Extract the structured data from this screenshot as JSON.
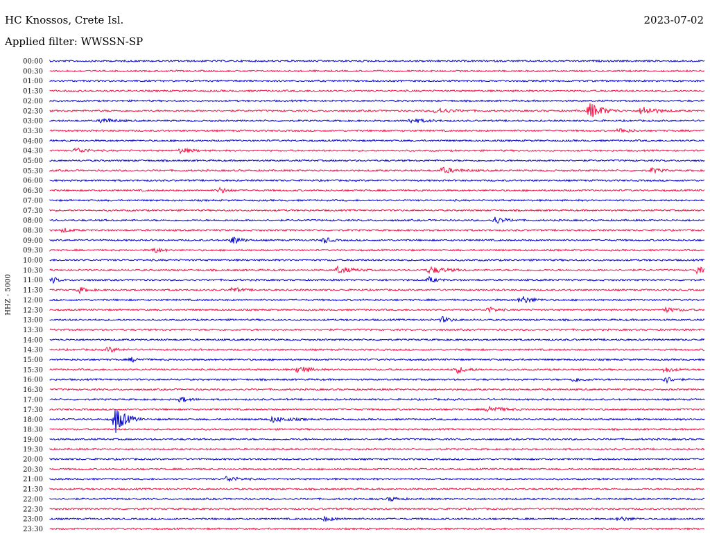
{
  "header": {
    "station": "HC Knossos, Crete Isl.",
    "date": "2023-07-02",
    "filter": "Applied filter: WWSSN-SP"
  },
  "chart_data": {
    "type": "line",
    "title": "",
    "ylabel": "HHZ - 5000",
    "rows": [
      "00:00",
      "00:30",
      "01:00",
      "01:30",
      "02:00",
      "02:30",
      "03:00",
      "03:30",
      "04:00",
      "04:30",
      "05:00",
      "05:30",
      "06:00",
      "06:30",
      "07:00",
      "07:30",
      "08:00",
      "08:30",
      "09:00",
      "09:30",
      "10:00",
      "10:30",
      "11:00",
      "11:30",
      "12:00",
      "12:30",
      "13:00",
      "13:30",
      "14:00",
      "14:30",
      "15:00",
      "15:30",
      "16:00",
      "16:30",
      "17:00",
      "17:30",
      "18:00",
      "18:30",
      "19:00",
      "19:30",
      "20:00",
      "20:30",
      "21:00",
      "21:30",
      "22:00",
      "22:30",
      "23:00",
      "23:30"
    ],
    "colors": [
      "#0000cc",
      "#ee1144"
    ],
    "events": [
      {
        "row": 5,
        "pos": 0.825,
        "amp": 12,
        "len": 0.05
      },
      {
        "row": 5,
        "pos": 0.905,
        "amp": 7,
        "len": 0.05
      },
      {
        "row": 5,
        "pos": 0.59,
        "amp": 4,
        "len": 0.06
      },
      {
        "row": 6,
        "pos": 0.08,
        "amp": 4,
        "len": 0.04
      },
      {
        "row": 6,
        "pos": 0.55,
        "amp": 3,
        "len": 0.06
      },
      {
        "row": 7,
        "pos": 0.87,
        "amp": 3,
        "len": 0.04
      },
      {
        "row": 9,
        "pos": 0.04,
        "amp": 4,
        "len": 0.04
      },
      {
        "row": 9,
        "pos": 0.2,
        "amp": 4,
        "len": 0.04
      },
      {
        "row": 11,
        "pos": 0.6,
        "amp": 4,
        "len": 0.06
      },
      {
        "row": 11,
        "pos": 0.92,
        "amp": 4,
        "len": 0.03
      },
      {
        "row": 13,
        "pos": 0.26,
        "amp": 4,
        "len": 0.03
      },
      {
        "row": 16,
        "pos": 0.68,
        "amp": 5,
        "len": 0.04
      },
      {
        "row": 17,
        "pos": 0.02,
        "amp": 3,
        "len": 0.03
      },
      {
        "row": 18,
        "pos": 0.28,
        "amp": 6,
        "len": 0.03
      },
      {
        "row": 18,
        "pos": 0.42,
        "amp": 5,
        "len": 0.02
      },
      {
        "row": 19,
        "pos": 0.16,
        "amp": 4,
        "len": 0.03
      },
      {
        "row": 21,
        "pos": 0.44,
        "amp": 5,
        "len": 0.05
      },
      {
        "row": 21,
        "pos": 0.58,
        "amp": 5,
        "len": 0.06
      },
      {
        "row": 21,
        "pos": 0.99,
        "amp": 6,
        "len": 0.02
      },
      {
        "row": 22,
        "pos": 0.005,
        "amp": 4,
        "len": 0.02
      },
      {
        "row": 22,
        "pos": 0.58,
        "amp": 4,
        "len": 0.03
      },
      {
        "row": 23,
        "pos": 0.045,
        "amp": 4,
        "len": 0.03
      },
      {
        "row": 23,
        "pos": 0.28,
        "amp": 4,
        "len": 0.03
      },
      {
        "row": 24,
        "pos": 0.72,
        "amp": 6,
        "len": 0.04
      },
      {
        "row": 25,
        "pos": 0.67,
        "amp": 4,
        "len": 0.03
      },
      {
        "row": 25,
        "pos": 0.94,
        "amp": 3,
        "len": 0.05
      },
      {
        "row": 26,
        "pos": 0.6,
        "amp": 4,
        "len": 0.03
      },
      {
        "row": 29,
        "pos": 0.09,
        "amp": 4,
        "len": 0.03
      },
      {
        "row": 30,
        "pos": 0.125,
        "amp": 3,
        "len": 0.03
      },
      {
        "row": 31,
        "pos": 0.38,
        "amp": 6,
        "len": 0.04
      },
      {
        "row": 31,
        "pos": 0.62,
        "amp": 5,
        "len": 0.04
      },
      {
        "row": 31,
        "pos": 0.94,
        "amp": 4,
        "len": 0.03
      },
      {
        "row": 32,
        "pos": 0.94,
        "amp": 5,
        "len": 0.03
      },
      {
        "row": 32,
        "pos": 0.8,
        "amp": 3,
        "len": 0.04
      },
      {
        "row": 34,
        "pos": 0.2,
        "amp": 4,
        "len": 0.03
      },
      {
        "row": 35,
        "pos": 0.67,
        "amp": 5,
        "len": 0.05
      },
      {
        "row": 36,
        "pos": 0.1,
        "amp": 20,
        "len": 0.04
      },
      {
        "row": 36,
        "pos": 0.34,
        "amp": 4,
        "len": 0.06
      },
      {
        "row": 42,
        "pos": 0.27,
        "amp": 4,
        "len": 0.04
      },
      {
        "row": 44,
        "pos": 0.52,
        "amp": 3,
        "len": 0.03
      },
      {
        "row": 46,
        "pos": 0.42,
        "amp": 3,
        "len": 0.04
      },
      {
        "row": 46,
        "pos": 0.87,
        "amp": 3,
        "len": 0.04
      }
    ]
  }
}
